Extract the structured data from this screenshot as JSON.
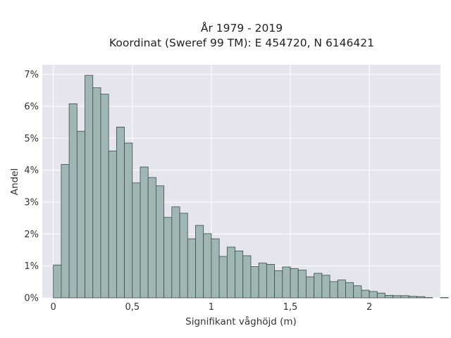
{
  "chart_data": {
    "type": "bar",
    "title_lines": [
      "År 1979 - 2019",
      "Koordinat (Sweref 99 TM): E 454720, N 6146421"
    ],
    "xlabel": "Signifikant våghöjd (m)",
    "ylabel": "Andel",
    "x_ticks": [
      {
        "value": 0,
        "label": "0"
      },
      {
        "value": 0.5,
        "label": "0,5"
      },
      {
        "value": 1,
        "label": "1"
      },
      {
        "value": 1.5,
        "label": "1,5"
      },
      {
        "value": 2,
        "label": "2"
      }
    ],
    "y_ticks": [
      {
        "value": 0,
        "label": "0%"
      },
      {
        "value": 1,
        "label": "1%"
      },
      {
        "value": 2,
        "label": "2%"
      },
      {
        "value": 3,
        "label": "3%"
      },
      {
        "value": 4,
        "label": "4%"
      },
      {
        "value": 5,
        "label": "5%"
      },
      {
        "value": 6,
        "label": "6%"
      },
      {
        "value": 7,
        "label": "7%"
      }
    ],
    "xlim": [
      -0.07,
      2.45
    ],
    "ylim": [
      0,
      7.3
    ],
    "bin_width": 0.05,
    "bin_start": 0.0,
    "values": [
      1.03,
      4.18,
      6.08,
      5.22,
      6.97,
      6.58,
      6.38,
      4.6,
      5.35,
      4.85,
      3.6,
      4.1,
      3.77,
      3.51,
      2.52,
      2.85,
      2.65,
      1.85,
      2.27,
      2.01,
      1.85,
      1.3,
      1.59,
      1.47,
      1.32,
      0.98,
      1.09,
      1.05,
      0.85,
      0.97,
      0.92,
      0.87,
      0.66,
      0.77,
      0.71,
      0.51,
      0.56,
      0.48,
      0.38,
      0.24,
      0.2,
      0.15,
      0.08,
      0.07,
      0.07,
      0.05,
      0.04,
      0.01,
      0.0,
      0.01
    ],
    "colors": {
      "plot_bg": "#e5e5ee",
      "grid": "#ffffff",
      "bar_fill": "#9fb6b5",
      "bar_edge": "#3f4b4b"
    },
    "grid": true
  }
}
